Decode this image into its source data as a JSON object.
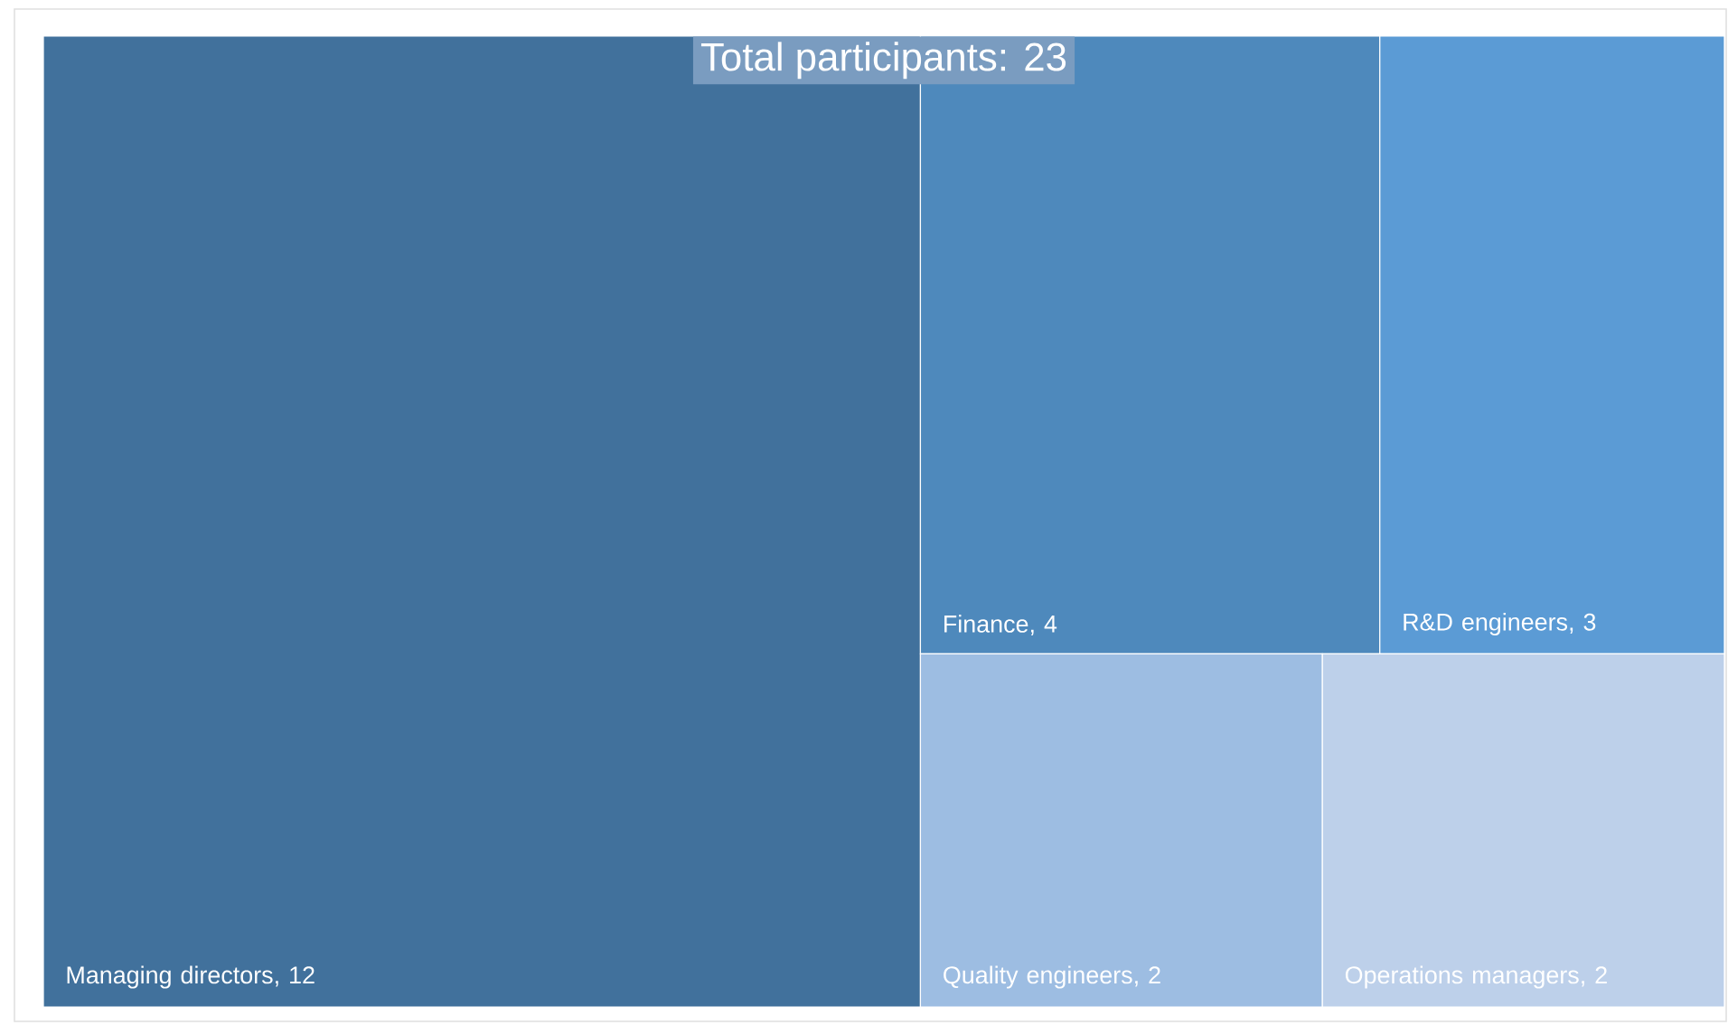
{
  "chart_data": {
    "type": "other",
    "title": "Total participants: 23",
    "categories": [
      "Managing directors",
      "Finance",
      "R&D engineers",
      "Quality engineers",
      "Operations managers"
    ],
    "values": [
      12,
      4,
      3,
      2,
      2
    ],
    "value_labels": [
      ", 12",
      ", 4",
      ", 3",
      ", 2",
      ", 2"
    ],
    "colors": [
      "#41719c",
      "#4e89bc",
      "#5b9bd5",
      "#9dbde2",
      "#bdd0ea"
    ]
  }
}
